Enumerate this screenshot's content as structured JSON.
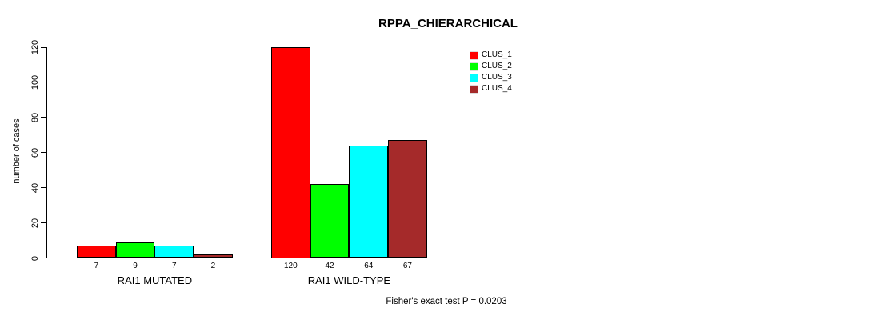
{
  "title": "RPPA_CHIERARCHICAL",
  "footer": "Fisher's exact test P = 0.0203",
  "chart_data": {
    "type": "bar",
    "title": "RPPA_CHIERARCHICAL",
    "xlabel": "",
    "ylabel": "number of cases",
    "ylim": [
      0,
      120
    ],
    "yticks": [
      0,
      20,
      40,
      60,
      80,
      100,
      120
    ],
    "grid": false,
    "legend_position": "top-right",
    "categories": [
      "RAI1 MUTATED",
      "RAI1 WILD-TYPE"
    ],
    "series": [
      {
        "name": "CLUS_1",
        "color": "#FF0000",
        "values": [
          7,
          120
        ]
      },
      {
        "name": "CLUS_2",
        "color": "#00FF00",
        "values": [
          9,
          42
        ]
      },
      {
        "name": "CLUS_3",
        "color": "#00FFFF",
        "values": [
          7,
          64
        ]
      },
      {
        "name": "CLUS_4",
        "color": "#A52A2A",
        "values": [
          2,
          67
        ]
      }
    ],
    "bar_value_labels_shown": true,
    "annotation": "Fisher's exact test P = 0.0203"
  }
}
